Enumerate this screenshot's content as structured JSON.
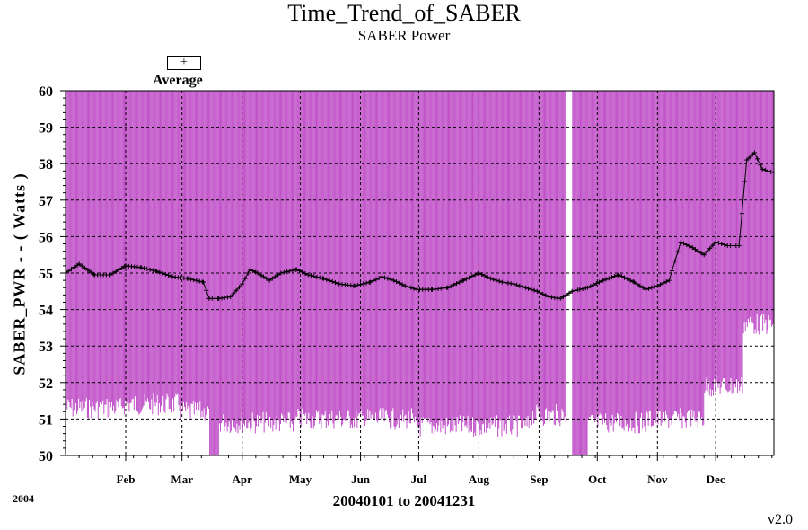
{
  "title": "Time_Trend_of_SABER",
  "subtitle": "SABER Power",
  "legend": {
    "symbol": "+",
    "label": "Average"
  },
  "year_label": "2004",
  "version": "v2.0",
  "colors": {
    "range_bars": "#c050c8",
    "average": "#000000",
    "grid": "#000000"
  },
  "chart_data": {
    "type": "line",
    "title": "Time_Trend_of_SABER",
    "subtitle": "SABER Power",
    "xlabel": "20040101 to 20041231",
    "ylabel": "SABER_PWR  - - ( Watts )",
    "ylim": [
      50,
      60
    ],
    "xlim_days": [
      1,
      366
    ],
    "y_ticks": [
      50,
      51,
      52,
      53,
      54,
      55,
      56,
      57,
      58,
      59,
      60
    ],
    "x_ticks": [
      {
        "label": "Feb",
        "day": 32
      },
      {
        "label": "Mar",
        "day": 61
      },
      {
        "label": "Apr",
        "day": 92
      },
      {
        "label": "May",
        "day": 122
      },
      {
        "label": "Jun",
        "day": 153
      },
      {
        "label": "Jul",
        "day": 183
      },
      {
        "label": "Aug",
        "day": 214
      },
      {
        "label": "Sep",
        "day": 245
      },
      {
        "label": "Oct",
        "day": 275
      },
      {
        "label": "Nov",
        "day": 306
      },
      {
        "label": "Dec",
        "day": 336
      }
    ],
    "grid": "dashed",
    "series": [
      {
        "name": "Average",
        "marker": "+",
        "x": [
          1,
          8,
          16,
          24,
          32,
          40,
          48,
          56,
          64,
          72,
          75,
          78,
          80,
          86,
          92,
          96,
          100,
          106,
          112,
          120,
          126,
          134,
          142,
          150,
          158,
          164,
          170,
          176,
          182,
          190,
          198,
          206,
          214,
          220,
          226,
          232,
          238,
          244,
          250,
          256,
          262,
          266,
          270,
          278,
          286,
          294,
          300,
          306,
          312,
          318,
          324,
          330,
          336,
          342,
          348,
          352,
          356,
          360,
          366
        ],
        "y": [
          55.0,
          55.25,
          54.95,
          54.95,
          55.2,
          55.15,
          55.05,
          54.9,
          54.85,
          54.75,
          54.3,
          54.3,
          54.3,
          54.35,
          54.7,
          55.1,
          55.0,
          54.8,
          55.0,
          55.1,
          54.95,
          54.85,
          54.7,
          54.65,
          54.75,
          54.9,
          54.8,
          54.65,
          54.55,
          54.55,
          54.6,
          54.8,
          55.0,
          54.85,
          54.75,
          54.7,
          54.6,
          54.5,
          54.35,
          54.3,
          54.5,
          54.55,
          54.6,
          54.8,
          54.95,
          54.75,
          54.55,
          54.65,
          54.8,
          55.85,
          55.7,
          55.5,
          55.85,
          55.75,
          55.75,
          58.1,
          58.3,
          57.85,
          57.75
        ]
      }
    ],
    "range_bars": {
      "description": "Min to max range per sample",
      "typical_max": 60,
      "min_segments": [
        {
          "start_day": 1,
          "end_day": 30,
          "min": 51.6
        },
        {
          "start_day": 30,
          "end_day": 60,
          "min": 51.7
        },
        {
          "start_day": 60,
          "end_day": 75,
          "min": 51.5
        },
        {
          "start_day": 75,
          "end_day": 80,
          "min": 50.0
        },
        {
          "start_day": 80,
          "end_day": 120,
          "min": 51.2
        },
        {
          "start_day": 120,
          "end_day": 180,
          "min": 51.3
        },
        {
          "start_day": 180,
          "end_day": 240,
          "min": 51.1
        },
        {
          "start_day": 240,
          "end_day": 262,
          "min": 51.4
        },
        {
          "start_day": 262,
          "end_day": 270,
          "min": 50.0
        },
        {
          "start_day": 270,
          "end_day": 300,
          "min": 51.2
        },
        {
          "start_day": 300,
          "end_day": 330,
          "min": 51.3
        },
        {
          "start_day": 330,
          "end_day": 350,
          "min": 52.2
        },
        {
          "start_day": 350,
          "end_day": 366,
          "min": 53.9
        }
      ]
    }
  }
}
